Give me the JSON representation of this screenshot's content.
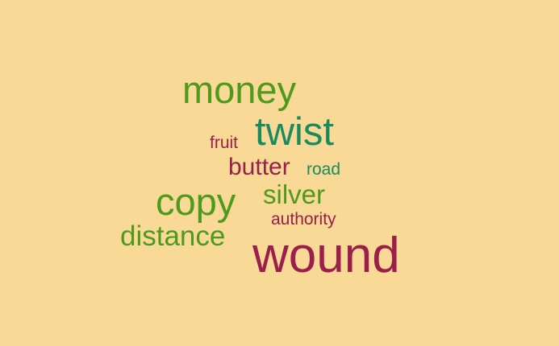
{
  "background_color": "#F8D996",
  "colors": {
    "green": "#4F9A1E",
    "teal": "#1B8A5E",
    "crimson": "#9B1F4A"
  },
  "words": {
    "money": {
      "text": "money",
      "color": "#4F9A1E"
    },
    "twist": {
      "text": "twist",
      "color": "#1B8A5E"
    },
    "fruit": {
      "text": "fruit",
      "color": "#9B1F4A"
    },
    "butter": {
      "text": "butter",
      "color": "#9B1F4A"
    },
    "road": {
      "text": "road",
      "color": "#1B8A5E"
    },
    "copy": {
      "text": "copy",
      "color": "#4F9A1E"
    },
    "silver": {
      "text": "silver",
      "color": "#4F9A1E"
    },
    "authority": {
      "text": "authority",
      "color": "#9B1F4A"
    },
    "distance": {
      "text": "distance",
      "color": "#4F9A1E"
    },
    "wound": {
      "text": "wound",
      "color": "#9B1F4A"
    }
  }
}
